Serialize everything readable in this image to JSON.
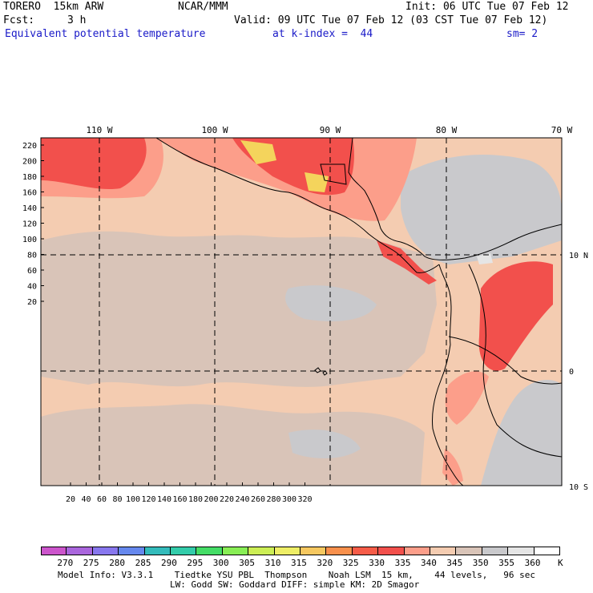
{
  "header": {
    "model": "TORERO  15km ARW",
    "center": "NCAR/MMM",
    "init": "Init: 06 UTC Tue 07 Feb 12",
    "fcst_label": "Fcst:",
    "fcst_value": "3 h",
    "valid": "Valid: 09 UTC Tue 07 Feb 12 (03 CST Tue 07 Feb 12)",
    "field": "Equivalent potential temperature",
    "level": "at k-index =  44",
    "smoothing": "sm= 2"
  },
  "map": {
    "top_longitude_labels": [
      "110 W",
      "100 W",
      "90 W",
      "80 W",
      "70 W"
    ],
    "right_latitude_labels": [
      "10 N",
      "0",
      "10 S"
    ],
    "y_axis_ticks": [
      "220",
      "200",
      "180",
      "160",
      "140",
      "120",
      "100",
      "80",
      "60",
      "40",
      "20"
    ],
    "x_axis_ticks": [
      "20",
      "40",
      "60",
      "80",
      "100",
      "120",
      "140",
      "160",
      "180",
      "200",
      "220",
      "240",
      "260",
      "280",
      "300",
      "320"
    ],
    "colors": {
      "c330": "#f2504c",
      "c325": "#f87c56",
      "c320": "#f9a070",
      "c335": "#fc9e8a",
      "c340": "#f4ccb1",
      "c345": "#d9c4b8",
      "c350": "#c9c9cc",
      "c355": "#e5e5e5",
      "hot": "#f4d45c"
    }
  },
  "colorbar": {
    "unit": "K",
    "labels": [
      "270",
      "275",
      "280",
      "285",
      "290",
      "295",
      "300",
      "305",
      "310",
      "315",
      "320",
      "325",
      "330",
      "335",
      "340",
      "345",
      "350",
      "355",
      "360"
    ],
    "colors": [
      "#cc55cc",
      "#aa66dd",
      "#8877ee",
      "#6688ee",
      "#33bbbb",
      "#33ccaa",
      "#44dd66",
      "#88ee55",
      "#ccee55",
      "#eeee66",
      "#f6c860",
      "#f8904c",
      "#f65c48",
      "#f2504c",
      "#fc9e8a",
      "#f4ccb1",
      "#d9c4b8",
      "#c9c9cc",
      "#e5e5e5",
      "#ffffff"
    ]
  },
  "footer": {
    "line1": "Model Info: V3.3.1    Tiedtke YSU PBL  Thompson    Noah LSM  15 km,    44 levels,   96 sec",
    "line2": "LW: Godd SW: Goddard DIFF: simple KM: 2D Smagor"
  }
}
